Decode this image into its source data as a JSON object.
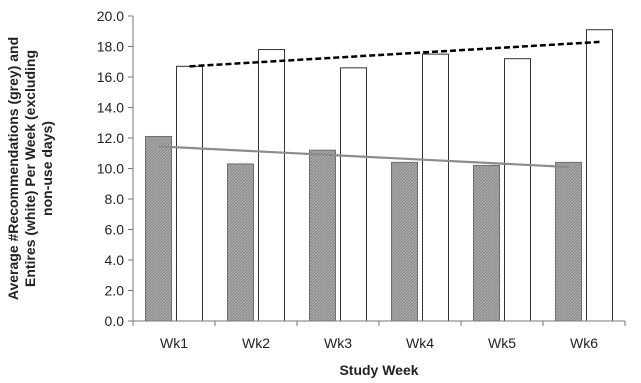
{
  "chart_data": {
    "type": "bar",
    "title": "",
    "xlabel": "Study Week",
    "ylabel_lines": [
      "Average #Recommendations (grey) and",
      "Entires (white) Per Week  (excluding",
      "non-use days)"
    ],
    "categories": [
      "Wk1",
      "Wk2",
      "Wk3",
      "Wk4",
      "Wk5",
      "Wk6"
    ],
    "series": [
      {
        "values": [
          12.1,
          10.3,
          11.2,
          10.4,
          10.2,
          10.4
        ],
        "color": "#8c8c8c",
        "hatched": true
      },
      {
        "values": [
          16.7,
          17.8,
          16.6,
          17.5,
          17.2,
          19.1
        ],
        "color": "#ffffff",
        "hatched": false
      }
    ],
    "trendlines": [
      {
        "series_index": 0,
        "start": 11.45,
        "end": 10.1,
        "style": "solid",
        "color": "#8c8c8c"
      },
      {
        "series_index": 1,
        "start": 16.7,
        "end": 18.3,
        "style": "dashed",
        "color": "#000000"
      }
    ],
    "ylim": [
      0,
      20
    ],
    "ytick_step": 2,
    "ytick_labels": [
      "0.0",
      "2.0",
      "4.0",
      "6.0",
      "8.0",
      "10.0",
      "12.0",
      "14.0",
      "16.0",
      "18.0",
      "20.0"
    ],
    "grid": false,
    "legend": "none"
  }
}
